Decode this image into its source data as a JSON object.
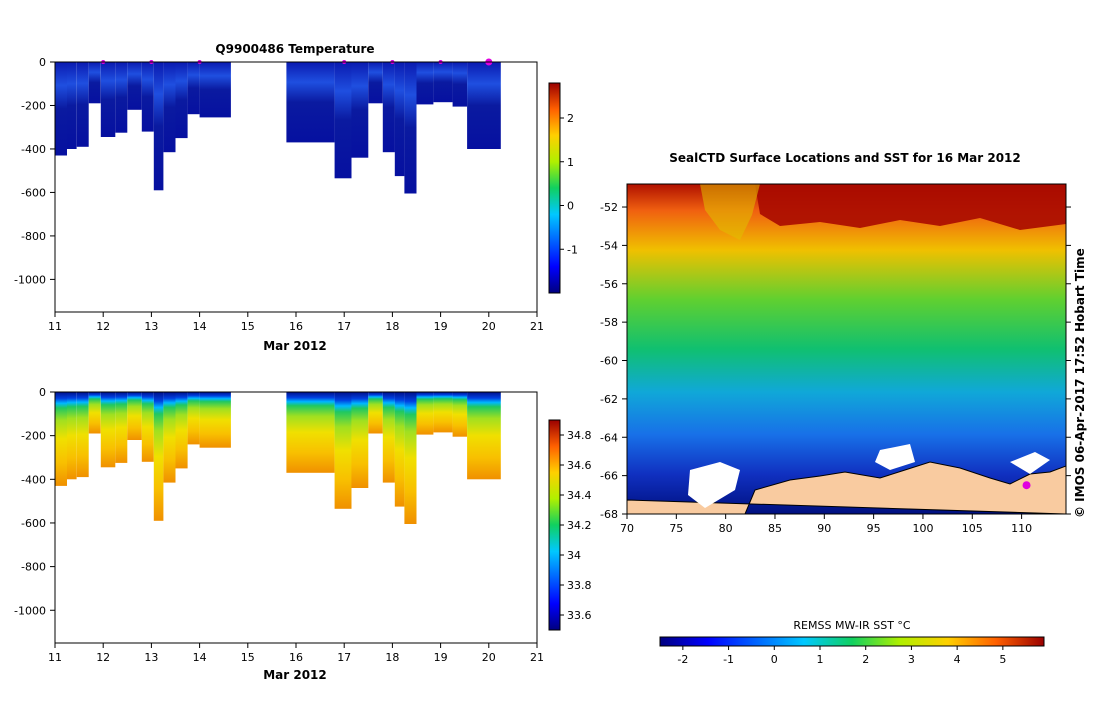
{
  "colors": {
    "land": "#f9cba0",
    "track_marker": "#e000e0",
    "axis": "#000000"
  },
  "side_label": "© IMOS 06-Apr-2017 17:52 Hobart Time",
  "chart_data": [
    {
      "id": "temperature",
      "type": "heatmap",
      "title": "Q9900486  Temperature",
      "xlabel": "Mar 2012",
      "ylabel": "",
      "xlim": [
        11,
        21
      ],
      "ylim": [
        -1150,
        0
      ],
      "xticks": [
        11,
        12,
        13,
        14,
        15,
        16,
        17,
        18,
        19,
        20,
        21
      ],
      "yticks": [
        0,
        -200,
        -400,
        -600,
        -800,
        -1000
      ],
      "colorbar": {
        "min": -2,
        "max": 2.8,
        "ticks": [
          2,
          1,
          0,
          -1
        ],
        "palette": "jet",
        "tick_labels": [
          "2",
          "1",
          "0",
          "-1"
        ]
      },
      "profiles": [
        {
          "x0": 11.0,
          "x1": 11.25,
          "depth": 430
        },
        {
          "x0": 11.25,
          "x1": 11.45,
          "depth": 400
        },
        {
          "x0": 11.45,
          "x1": 11.7,
          "depth": 390
        },
        {
          "x0": 11.7,
          "x1": 11.95,
          "depth": 190
        },
        {
          "x0": 11.95,
          "x1": 12.25,
          "depth": 345
        },
        {
          "x0": 12.25,
          "x1": 12.5,
          "depth": 325
        },
        {
          "x0": 12.5,
          "x1": 12.8,
          "depth": 220
        },
        {
          "x0": 12.8,
          "x1": 13.05,
          "depth": 320
        },
        {
          "x0": 13.05,
          "x1": 13.25,
          "depth": 590
        },
        {
          "x0": 13.25,
          "x1": 13.5,
          "depth": 415
        },
        {
          "x0": 13.5,
          "x1": 13.75,
          "depth": 350
        },
        {
          "x0": 13.75,
          "x1": 14.0,
          "depth": 240
        },
        {
          "x0": 14.0,
          "x1": 14.65,
          "depth": 255
        },
        {
          "x0": 15.8,
          "x1": 16.8,
          "depth": 370
        },
        {
          "x0": 16.8,
          "x1": 17.15,
          "depth": 535
        },
        {
          "x0": 17.15,
          "x1": 17.5,
          "depth": 440
        },
        {
          "x0": 17.5,
          "x1": 17.8,
          "depth": 190
        },
        {
          "x0": 17.8,
          "x1": 18.05,
          "depth": 415
        },
        {
          "x0": 18.05,
          "x1": 18.25,
          "depth": 525
        },
        {
          "x0": 18.25,
          "x1": 18.5,
          "depth": 605
        },
        {
          "x0": 18.5,
          "x1": 18.85,
          "depth": 195
        },
        {
          "x0": 18.85,
          "x1": 19.25,
          "depth": 185
        },
        {
          "x0": 19.25,
          "x1": 19.55,
          "depth": 205
        },
        {
          "x0": 19.55,
          "x1": 20.25,
          "depth": 400
        }
      ],
      "markers_x": [
        12,
        13,
        14,
        17,
        18,
        19,
        20
      ]
    },
    {
      "id": "salinity",
      "type": "heatmap",
      "title": "",
      "xlabel": "Mar 2012",
      "ylabel": "",
      "xlim": [
        11,
        21
      ],
      "ylim": [
        -1150,
        0
      ],
      "xticks": [
        11,
        12,
        13,
        14,
        15,
        16,
        17,
        18,
        19,
        20,
        21
      ],
      "yticks": [
        0,
        -200,
        -400,
        -600,
        -800,
        -1000
      ],
      "colorbar": {
        "min": 33.5,
        "max": 34.9,
        "ticks": [
          34.8,
          34.6,
          34.4,
          34.2,
          34,
          33.8,
          33.6
        ],
        "palette": "jet",
        "tick_labels": [
          "34.8",
          "34.6",
          "34.4",
          "34.2",
          "34",
          "33.8",
          "33.6"
        ]
      },
      "profiles": [
        {
          "x0": 11.0,
          "x1": 11.25,
          "depth": 430
        },
        {
          "x0": 11.25,
          "x1": 11.45,
          "depth": 400
        },
        {
          "x0": 11.45,
          "x1": 11.7,
          "depth": 390
        },
        {
          "x0": 11.7,
          "x1": 11.95,
          "depth": 190
        },
        {
          "x0": 11.95,
          "x1": 12.25,
          "depth": 345
        },
        {
          "x0": 12.25,
          "x1": 12.5,
          "depth": 325
        },
        {
          "x0": 12.5,
          "x1": 12.8,
          "depth": 220
        },
        {
          "x0": 12.8,
          "x1": 13.05,
          "depth": 320
        },
        {
          "x0": 13.05,
          "x1": 13.25,
          "depth": 590
        },
        {
          "x0": 13.25,
          "x1": 13.5,
          "depth": 415
        },
        {
          "x0": 13.5,
          "x1": 13.75,
          "depth": 350
        },
        {
          "x0": 13.75,
          "x1": 14.0,
          "depth": 240
        },
        {
          "x0": 14.0,
          "x1": 14.65,
          "depth": 255
        },
        {
          "x0": 15.8,
          "x1": 16.8,
          "depth": 370
        },
        {
          "x0": 16.8,
          "x1": 17.15,
          "depth": 535
        },
        {
          "x0": 17.15,
          "x1": 17.5,
          "depth": 440
        },
        {
          "x0": 17.5,
          "x1": 17.8,
          "depth": 190
        },
        {
          "x0": 17.8,
          "x1": 18.05,
          "depth": 415
        },
        {
          "x0": 18.05,
          "x1": 18.25,
          "depth": 525
        },
        {
          "x0": 18.25,
          "x1": 18.5,
          "depth": 605
        },
        {
          "x0": 18.5,
          "x1": 18.85,
          "depth": 195
        },
        {
          "x0": 18.85,
          "x1": 19.25,
          "depth": 185
        },
        {
          "x0": 19.25,
          "x1": 19.55,
          "depth": 205
        },
        {
          "x0": 19.55,
          "x1": 20.25,
          "depth": 400
        }
      ]
    },
    {
      "id": "sst_map",
      "type": "heatmap",
      "title": "SealCTD Surface Locations and SST for 16 Mar 2012",
      "xlabel": "",
      "ylabel": "",
      "xlim": [
        70,
        114.5
      ],
      "ylim": [
        -68,
        -50.8
      ],
      "xticks": [
        70,
        75,
        80,
        85,
        90,
        95,
        100,
        105,
        110
      ],
      "yticks": [
        -52,
        -54,
        -56,
        -58,
        -60,
        -62,
        -64,
        -66,
        -68
      ],
      "colorbar": {
        "label": "REMSS MW-IR SST °C",
        "min": -2.5,
        "max": 5.9,
        "ticks": [
          -2,
          -1,
          0,
          1,
          2,
          3,
          4,
          5
        ],
        "palette": "jet",
        "tick_labels": [
          "-2",
          "-1",
          "0",
          "1",
          "2",
          "3",
          "4",
          "5"
        ]
      },
      "sst_by_latitude": [
        {
          "lat": -51,
          "sst": 5.2
        },
        {
          "lat": -53,
          "sst": 4.0
        },
        {
          "lat": -55,
          "sst": 2.6
        },
        {
          "lat": -57,
          "sst": 2.2
        },
        {
          "lat": -59,
          "sst": 1.6
        },
        {
          "lat": -61,
          "sst": 1.0
        },
        {
          "lat": -63,
          "sst": 0.0
        },
        {
          "lat": -65,
          "sst": -1.0
        },
        {
          "lat": -66.5,
          "sst": -1.8
        }
      ],
      "location": {
        "lon": 110.5,
        "lat": -66.5
      }
    }
  ]
}
